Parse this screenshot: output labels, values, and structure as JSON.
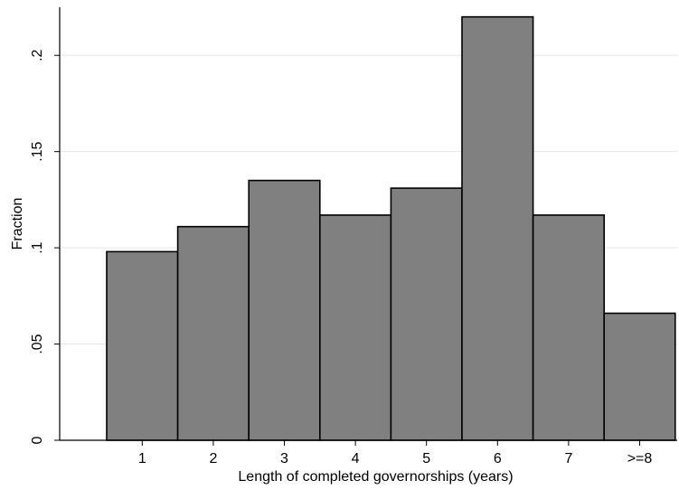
{
  "chart_data": {
    "type": "bar",
    "title": "",
    "xlabel": "Length of completed governorships (years)",
    "ylabel": "Fraction",
    "categories": [
      "1",
      "2",
      "3",
      "4",
      "5",
      "6",
      "7",
      ">=8"
    ],
    "values": [
      0.098,
      0.111,
      0.135,
      0.117,
      0.131,
      0.22,
      0.117,
      0.066
    ],
    "yticks": [
      0,
      0.05,
      0.1,
      0.15,
      0.2
    ],
    "ytick_labels": [
      "0",
      ".05",
      ".1",
      ".15",
      ".2"
    ],
    "ylim": [
      0,
      0.225
    ],
    "grid": true,
    "legend": "none",
    "colors": {
      "bar_fill": "#808080",
      "bar_stroke": "#000000",
      "grid": "#e6e6e6",
      "axis": "#000000"
    }
  }
}
